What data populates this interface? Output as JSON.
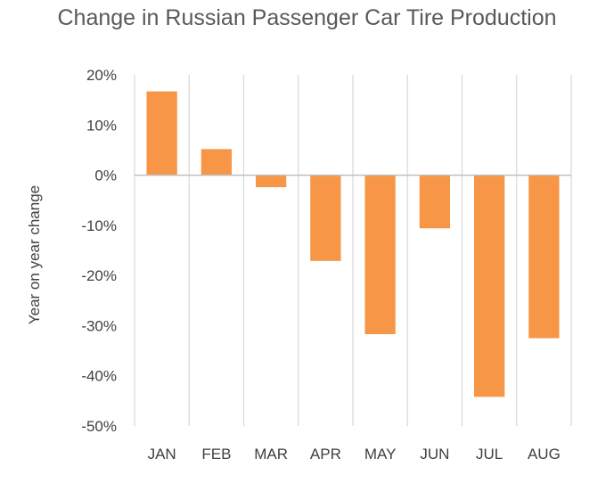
{
  "chart_data": {
    "type": "bar",
    "title": "Change in Russian Passenger Car Tire Production",
    "xlabel": "",
    "ylabel": "Year on year change",
    "categories": [
      "JAN",
      "FEB",
      "MAR",
      "APR",
      "MAY",
      "JUN",
      "JUL",
      "AUG"
    ],
    "values": [
      16.7,
      5.2,
      -2.4,
      -17.1,
      -31.7,
      -10.6,
      -44.2,
      -32.5
    ],
    "ylim": [
      -50,
      20
    ],
    "yticks": [
      "20%",
      "10%",
      "0%",
      "-10%",
      "-20%",
      "-30%",
      "-40%",
      "-50%"
    ],
    "bar_color": "#f79646",
    "grid": "vertical",
    "legend": "none"
  }
}
